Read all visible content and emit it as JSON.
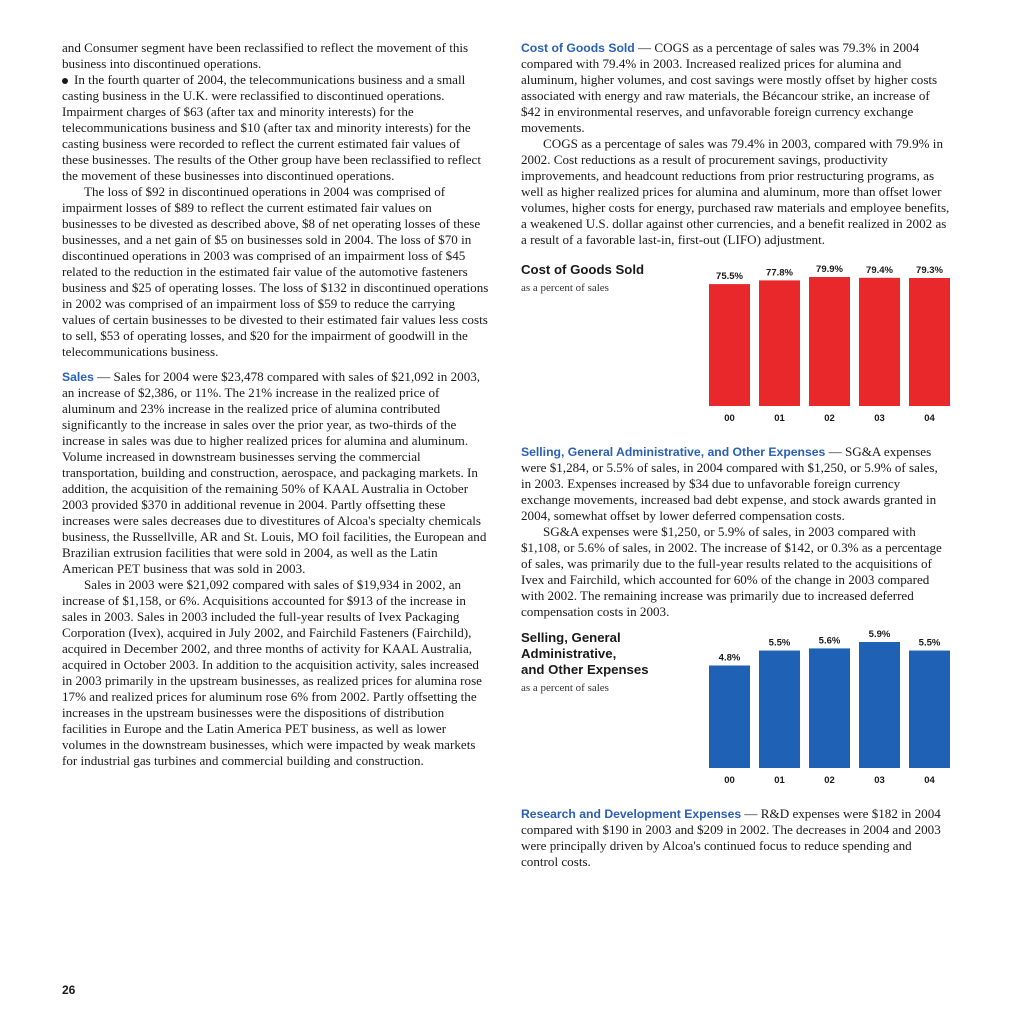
{
  "left": {
    "p1": "and Consumer segment have been reclassified to reflect the movement of this business into discontinued operations.",
    "p2": "In the fourth quarter of 2004, the telecommunications business and a small casting business in the U.K. were reclassified to discontinued operations. Impairment charges of $63 (after tax and minority interests) for the telecommunications business and $10 (after tax and minority interests) for the casting business were recorded to reflect the current estimated fair values of these businesses. The results of the Other group have been reclassified to reflect the movement of these businesses into discontinued operations.",
    "p3": "The loss of $92 in discontinued operations in 2004 was comprised of impairment losses of $89 to reflect the current estimated fair values on businesses to be divested as described above, $8 of net operating losses of these businesses, and a net gain of $5 on businesses sold in 2004. The loss of $70 in discontinued operations in 2003 was comprised of an impairment loss of $45 related to the reduction in the estimated fair value of the automotive fasteners business and $25 of operating losses. The loss of $132 in discontinued operations in 2002 was comprised of an impairment loss of $59 to reduce the carrying values of certain businesses to be divested to their estimated fair values less costs to sell, $53 of operating losses, and $20 for the impairment of goodwill in the telecommunications business.",
    "sales_head": "Sales",
    "sales_p1": " — Sales for 2004 were $23,478 compared with sales of $21,092 in 2003, an increase of $2,386, or 11%. The 21% increase in the realized price of aluminum and 23% increase in the realized price of alumina contributed significantly to the increase in sales over the prior year, as two-thirds of the increase in sales was due to higher realized prices for alumina and aluminum. Volume increased in downstream businesses serving the commercial transportation, building and construction, aerospace, and packaging markets. In addition, the acquisition of the remaining 50% of KAAL Australia in October 2003 provided $370 in additional revenue in 2004. Partly offsetting these increases were sales decreases due to divestitures of Alcoa's specialty chemicals business, the Russellville, AR and St. Louis, MO foil facilities, the European and Brazilian extrusion facilities that were sold in 2004, as well as the Latin American PET business that was sold in 2003.",
    "sales_p2": "Sales in 2003 were $21,092 compared with sales of $19,934 in 2002, an increase of $1,158, or 6%. Acquisitions accounted for $913 of the increase in sales in 2003. Sales in 2003 included the full-year results of Ivex Packaging Corporation (Ivex), acquired in July 2002, and Fairchild Fasteners (Fairchild), acquired in December 2002, and three months of activity for KAAL Australia, acquired in October 2003. In addition to the acquisition activity, sales increased in 2003 primarily in the upstream businesses, as realized prices for alumina rose 17% and realized prices for aluminum rose 6% from 2002. Partly offsetting the increases in the upstream businesses were the dispositions of distribution facilities in Europe and the Latin America PET business, as well as lower volumes in the downstream businesses, which were impacted by weak markets for industrial gas turbines and commercial building and construction."
  },
  "right": {
    "cogs_head": "Cost of Goods Sold",
    "cogs_p1": " — COGS as a percentage of sales was 79.3% in 2004 compared with 79.4% in 2003. Increased realized prices for alumina and aluminum, higher volumes, and cost savings were mostly offset by higher costs associated with energy and raw materials, the Bécancour strike, an increase of $42 in environmental reserves, and unfavorable foreign currency exchange movements.",
    "cogs_p2": "COGS as a percentage of sales was 79.4% in 2003, compared with 79.9% in 2002. Cost reductions as a result of procurement savings, productivity improvements, and headcount reductions from prior restructuring programs, as well as higher realized prices for alumina and aluminum, more than offset lower volumes, higher costs for energy, purchased raw materials and employee benefits, a weakened U.S. dollar against other currencies, and a benefit realized in 2002 as a result of a favorable last-in, first-out (LIFO) adjustment.",
    "sga_head": "Selling, General Administrative, and Other Expenses",
    "sga_p1": " — SG&A expenses were $1,284, or 5.5% of sales, in 2004 compared with $1,250, or 5.9% of sales, in 2003. Expenses increased by $34 due to unfavorable foreign currency exchange movements, increased bad debt expense, and stock awards granted in 2004, somewhat offset by lower deferred compensation costs.",
    "sga_p2": "SG&A expenses were $1,250, or 5.9% of sales, in 2003 compared with $1,108, or 5.6% of sales, in 2002. The increase of $142, or 0.3% as a percentage of sales, was primarily due to the full-year results related to the acquisitions of Ivex and Fairchild, which accounted for 60% of the change in 2003 compared with 2002. The remaining increase was primarily due to increased deferred compensation costs in 2003.",
    "rd_head": "Research and Development Expenses",
    "rd_p1": " — R&D expenses were $182 in 2004 compared with $190 in 2003 and $209 in 2002. The decreases in 2004 and 2003 were principally driven by Alcoa's continued focus to reduce spending and control costs."
  },
  "page_number": "26",
  "chart_data": [
    {
      "type": "bar",
      "title": "Cost of Goods Sold",
      "subtitle": "as a percent of sales",
      "categories": [
        "00",
        "01",
        "02",
        "03",
        "04"
      ],
      "values": [
        75.5,
        77.8,
        79.9,
        79.4,
        79.3
      ],
      "labels": [
        "75.5%",
        "77.8%",
        "79.9%",
        "79.4%",
        "79.3%"
      ],
      "color": "#e8282a"
    },
    {
      "type": "bar",
      "title": "Selling, General Administrative, and Other Expenses",
      "title_lines": [
        "Selling, General",
        "Administrative,",
        "and Other Expenses"
      ],
      "subtitle": "as a percent of sales",
      "categories": [
        "00",
        "01",
        "02",
        "03",
        "04"
      ],
      "values": [
        4.8,
        5.5,
        5.6,
        5.9,
        5.5
      ],
      "labels": [
        "4.8%",
        "5.5%",
        "5.6%",
        "5.9%",
        "5.5%"
      ],
      "color": "#1f62b5"
    }
  ]
}
